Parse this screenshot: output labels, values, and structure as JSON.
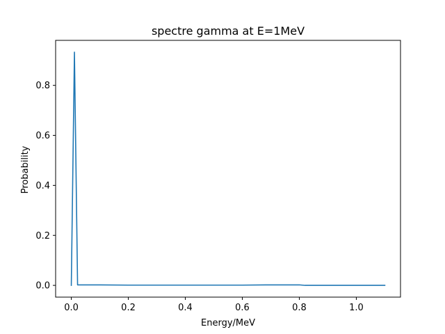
{
  "chart_data": {
    "type": "line",
    "title": "spectre gamma at E=1MeV",
    "xlabel": "Energy/MeV",
    "ylabel": "Probability",
    "xlim": [
      -0.055,
      1.155
    ],
    "ylim": [
      -0.047,
      0.98
    ],
    "xticks": [
      0.0,
      0.2,
      0.4,
      0.6,
      0.8,
      1.0
    ],
    "xtick_labels": [
      "0.0",
      "0.2",
      "0.4",
      "0.6",
      "0.8",
      "1.0"
    ],
    "yticks": [
      0.0,
      0.2,
      0.4,
      0.6,
      0.8
    ],
    "ytick_labels": [
      "0.0",
      "0.2",
      "0.4",
      "0.6",
      "0.8"
    ],
    "grid": false,
    "series": [
      {
        "color": "#1f77b4",
        "x": [
          0.0,
          0.011,
          0.022,
          0.1,
          0.2,
          0.3,
          0.4,
          0.5,
          0.6,
          0.7,
          0.8,
          0.82,
          0.9,
          1.0,
          1.1
        ],
        "y": [
          0.0,
          0.933,
          0.002,
          0.002,
          0.001,
          0.001,
          0.001,
          0.001,
          0.001,
          0.002,
          0.002,
          0.0,
          0.0,
          0.0,
          0.0
        ]
      }
    ]
  }
}
